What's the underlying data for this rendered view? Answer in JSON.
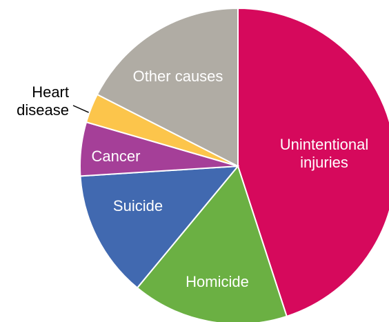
{
  "chart_data": {
    "type": "pie",
    "categories": [
      "Unintentional injuries",
      "Homicide",
      "Suicide",
      "Cancer",
      "Heart disease",
      "Other causes"
    ],
    "values": [
      45,
      16,
      13,
      5.5,
      3,
      17.5
    ],
    "colors": [
      "#d6095c",
      "#6bb043",
      "#4169b0",
      "#a53f98",
      "#fcc54b",
      "#b0aca4"
    ]
  }
}
